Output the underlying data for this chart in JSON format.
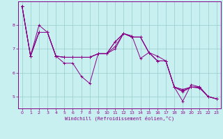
{
  "xlabel": "Windchill (Refroidissement éolien,°C)",
  "background_color": "#c8f0f0",
  "line_color": "#880088",
  "xlim": [
    -0.5,
    23.5
  ],
  "ylim": [
    4.5,
    9.0
  ],
  "yticks": [
    5,
    6,
    7,
    8
  ],
  "xtick_labels": [
    "0",
    "1",
    "2",
    "3",
    "4",
    "5",
    "6",
    "7",
    "8",
    "9",
    "10",
    "11",
    "12",
    "13",
    "14",
    "15",
    "16",
    "17",
    "18",
    "19",
    "20",
    "21",
    "22",
    "23"
  ],
  "series1": [
    8.8,
    6.7,
    8.0,
    7.7,
    6.7,
    6.4,
    6.4,
    5.85,
    5.55,
    6.8,
    6.8,
    7.3,
    7.65,
    7.55,
    6.6,
    6.85,
    6.7,
    6.5,
    5.4,
    4.8,
    5.5,
    5.4,
    5.0,
    4.9
  ],
  "series2": [
    8.8,
    6.7,
    7.7,
    7.7,
    6.7,
    6.65,
    6.65,
    6.65,
    6.65,
    6.8,
    6.8,
    7.3,
    7.65,
    7.5,
    7.5,
    6.85,
    6.5,
    6.5,
    5.4,
    5.25,
    5.4,
    5.35,
    5.0,
    4.9
  ],
  "series3": [
    8.8,
    6.7,
    7.7,
    7.7,
    6.7,
    6.65,
    6.65,
    6.65,
    6.65,
    6.8,
    6.8,
    7.1,
    7.65,
    7.5,
    7.5,
    6.85,
    6.5,
    6.5,
    5.4,
    5.3,
    5.4,
    5.4,
    5.0,
    4.9
  ],
  "series4": [
    8.8,
    6.7,
    7.7,
    7.7,
    6.7,
    6.65,
    6.65,
    6.65,
    6.65,
    6.8,
    6.8,
    7.0,
    7.65,
    7.5,
    7.5,
    6.85,
    6.5,
    6.5,
    5.4,
    5.2,
    5.4,
    5.4,
    5.0,
    4.9
  ]
}
